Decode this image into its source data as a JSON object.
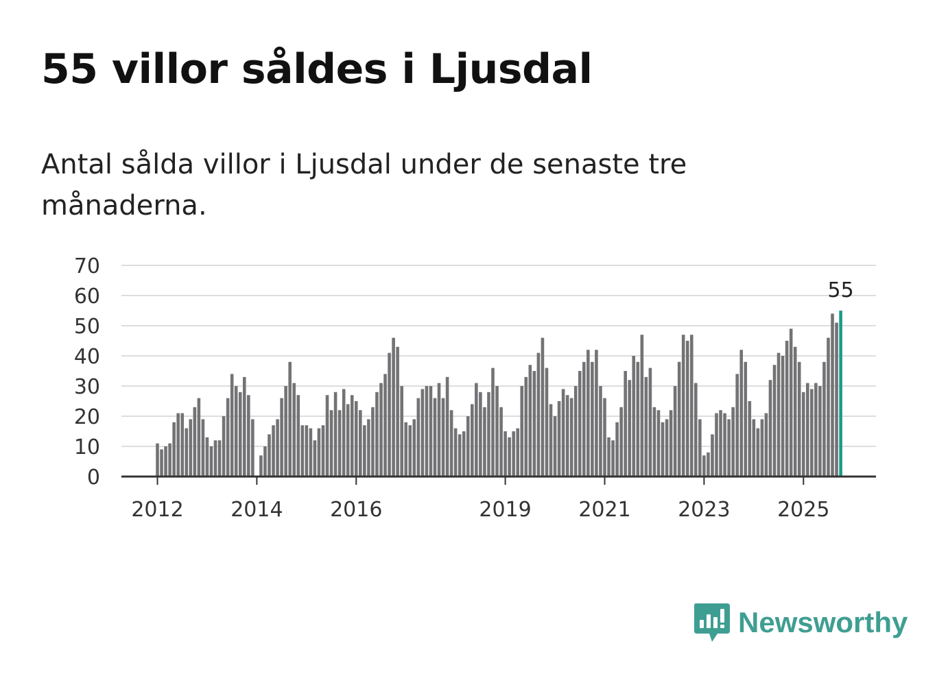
{
  "title": "55 villor såldes i Ljusdal",
  "subtitle": "Antal sålda villor i Ljusdal under de senaste tre månaderna.",
  "logo": {
    "name": "Newsworthy",
    "icon": "newsworthy-logo-icon"
  },
  "colors": {
    "bar": "#737275",
    "highlight": "#1a9a8c",
    "grid": "#dddddd",
    "axis": "#333333",
    "logo": "#3f9e92"
  },
  "chart_data": {
    "type": "bar",
    "title": "Antal sålda villor i Ljusdal under de senaste tre månaderna",
    "xlabel": "",
    "ylabel": "",
    "ylim": [
      0,
      70
    ],
    "yticks": [
      0,
      10,
      20,
      30,
      40,
      50,
      60,
      70
    ],
    "grid": true,
    "start": "2012-01",
    "frequency": "monthly",
    "xtick_labels": [
      {
        "label": "2012",
        "index": 0
      },
      {
        "label": "2014",
        "index": 24
      },
      {
        "label": "2016",
        "index": 48
      },
      {
        "label": "2019",
        "index": 84
      },
      {
        "label": "2021",
        "index": 108
      },
      {
        "label": "2023",
        "index": 132
      },
      {
        "label": "2025",
        "index": 156
      }
    ],
    "highlight_index": 165,
    "highlight_label": "55",
    "values": [
      11,
      9,
      10,
      11,
      18,
      21,
      21,
      16,
      19,
      23,
      26,
      19,
      13,
      10,
      12,
      12,
      20,
      26,
      34,
      30,
      28,
      33,
      27,
      19,
      0,
      7,
      10,
      14,
      17,
      19,
      26,
      30,
      38,
      31,
      27,
      17,
      17,
      16,
      12,
      16,
      17,
      27,
      22,
      28,
      22,
      29,
      24,
      27,
      25,
      22,
      17,
      19,
      23,
      28,
      31,
      34,
      41,
      46,
      43,
      30,
      18,
      17,
      19,
      26,
      29,
      30,
      30,
      26,
      31,
      26,
      33,
      22,
      16,
      14,
      15,
      20,
      24,
      31,
      28,
      23,
      28,
      36,
      30,
      23,
      15,
      13,
      15,
      16,
      30,
      33,
      37,
      35,
      41,
      46,
      36,
      24,
      20,
      25,
      29,
      27,
      26,
      30,
      35,
      38,
      42,
      38,
      42,
      30,
      26,
      13,
      12,
      18,
      23,
      35,
      32,
      40,
      38,
      47,
      33,
      36,
      23,
      22,
      18,
      19,
      22,
      30,
      38,
      47,
      45,
      47,
      31,
      19,
      7,
      8,
      14,
      21,
      22,
      21,
      19,
      23,
      34,
      42,
      38,
      25,
      19,
      16,
      19,
      21,
      32,
      37,
      41,
      40,
      45,
      49,
      43,
      38,
      28,
      31,
      29,
      31,
      30,
      38,
      46,
      54,
      51,
      55
    ]
  }
}
